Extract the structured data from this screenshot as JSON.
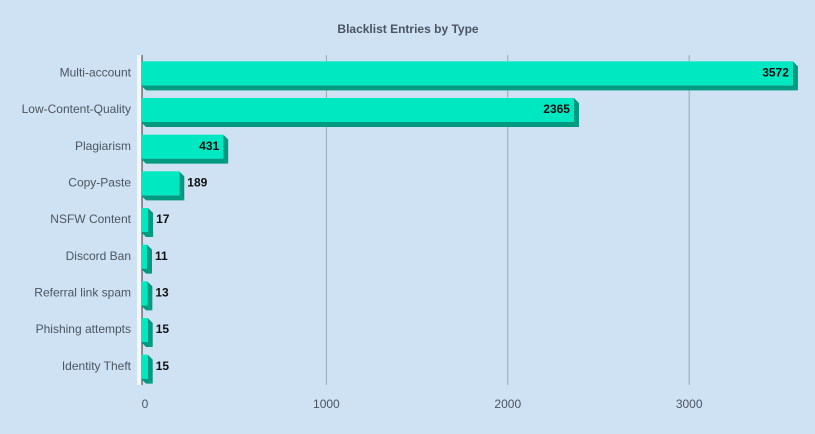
{
  "chart_data": {
    "type": "bar",
    "orientation": "horizontal",
    "title": "Blacklist Entries by Type",
    "categories": [
      "Multi-account",
      "Low-Content-Quality",
      "Plagiarism",
      "Copy-Paste",
      "NSFW Content",
      "Discord Ban",
      "Referral link spam",
      "Phishing attempts",
      "Identity Theft"
    ],
    "values": [
      3572,
      2365,
      431,
      189,
      17,
      11,
      13,
      15,
      15
    ],
    "color": "#00e8c2",
    "shade_color": "#009a80",
    "xlim": [
      0,
      3600
    ],
    "xticks": [
      0,
      1000,
      2000,
      3000
    ],
    "grid": true
  }
}
